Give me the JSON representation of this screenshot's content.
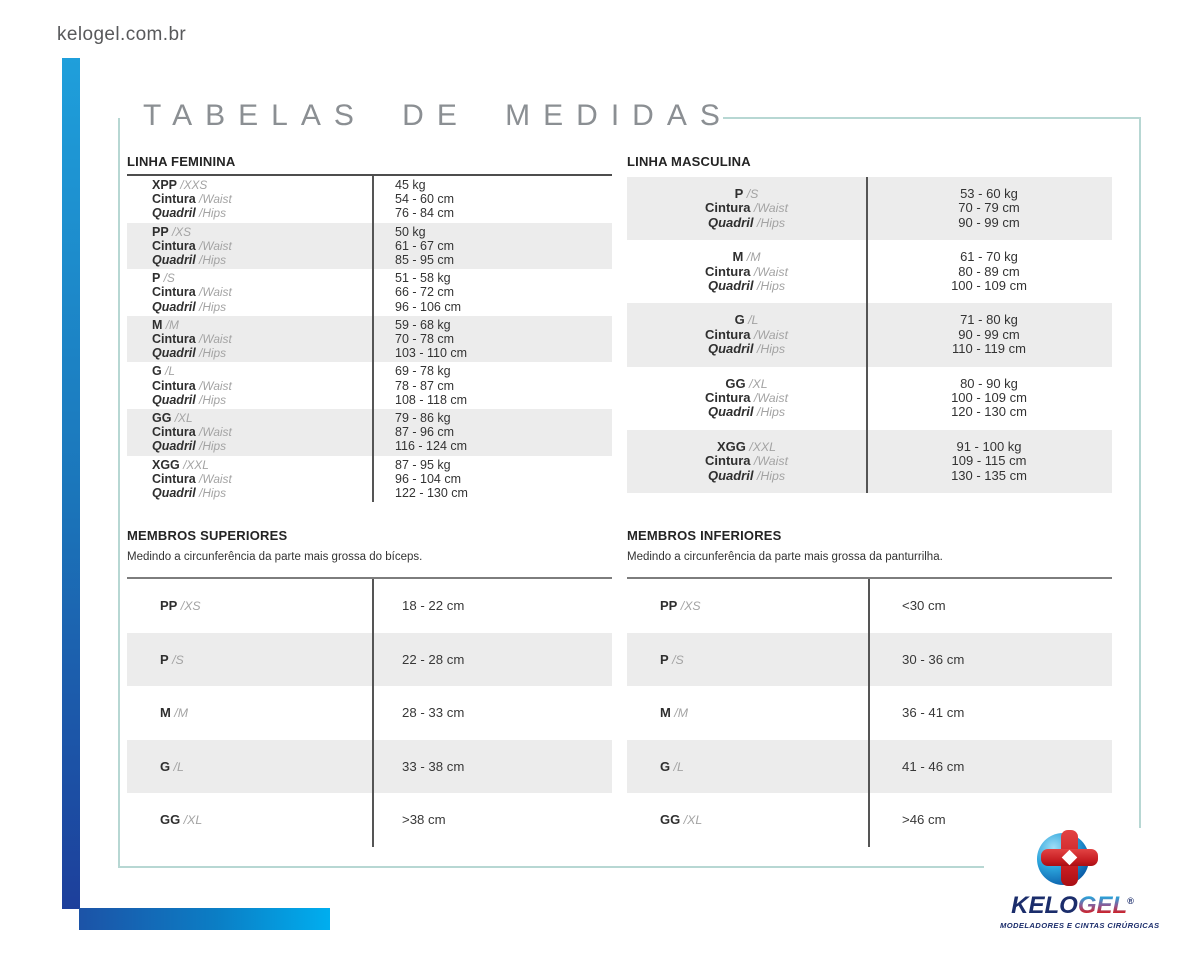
{
  "page": {
    "site_url": "kelogel.com.br",
    "title": "TABELAS DE MEDIDAS"
  },
  "colors": {
    "accent_blue_top": "#1f9fdb",
    "accent_blue_bottom": "#1d3f9b",
    "accent_cyan": "#00aeef",
    "frame_teal": "#b7d7d3",
    "row_shade": "#ececec",
    "text_dark": "#2f2f2f",
    "text_gray": "#a3a3a3",
    "logo_navy": "#1b2d6b",
    "logo_red": "#cc2128",
    "logo_blue": "#2d9fd6"
  },
  "labels": {
    "cintura": "Cintura",
    "waist": "/Waist",
    "quadril": "Quadril",
    "hips": "/Hips"
  },
  "linha_feminina": {
    "heading": "LINHA FEMININA",
    "rows": [
      {
        "size": "XPP",
        "size_intl": "/XXS",
        "weight": "45 kg",
        "waist": "54 - 60 cm",
        "hips": "76 - 84 cm",
        "shaded": false
      },
      {
        "size": "PP",
        "size_intl": "/XS",
        "weight": "50 kg",
        "waist": "61 - 67 cm",
        "hips": "85 - 95 cm",
        "shaded": true
      },
      {
        "size": "P",
        "size_intl": "/S",
        "weight": "51 - 58 kg",
        "waist": "66 - 72 cm",
        "hips": "96 - 106 cm",
        "shaded": false
      },
      {
        "size": "M",
        "size_intl": "/M",
        "weight": "59 - 68 kg",
        "waist": "70 - 78 cm",
        "hips": "103 - 110 cm",
        "shaded": true
      },
      {
        "size": "G",
        "size_intl": "/L",
        "weight": "69 - 78 kg",
        "waist": "78 - 87 cm",
        "hips": "108 - 118 cm",
        "shaded": false
      },
      {
        "size": "GG",
        "size_intl": "/XL",
        "weight": "79 - 86 kg",
        "waist": "87 - 96 cm",
        "hips": "116 - 124 cm",
        "shaded": true
      },
      {
        "size": "XGG",
        "size_intl": "/XXL",
        "weight": "87 - 95 kg",
        "waist": "96 - 104 cm",
        "hips": "122 - 130 cm",
        "shaded": false
      }
    ]
  },
  "linha_masculina": {
    "heading": "LINHA MASCULINA",
    "rows": [
      {
        "size": "P",
        "size_intl": "/S",
        "weight": "53 - 60 kg",
        "waist": "70 - 79 cm",
        "hips": "90 - 99 cm",
        "shaded": true
      },
      {
        "size": "M",
        "size_intl": "/M",
        "weight": "61 - 70 kg",
        "waist": "80 - 89 cm",
        "hips": "100 - 109 cm",
        "shaded": false
      },
      {
        "size": "G",
        "size_intl": "/L",
        "weight": "71 - 80 kg",
        "waist": "90 - 99 cm",
        "hips": "110 - 119 cm",
        "shaded": true
      },
      {
        "size": "GG",
        "size_intl": "/XL",
        "weight": "80 - 90 kg",
        "waist": "100 - 109 cm",
        "hips": "120 - 130 cm",
        "shaded": false
      },
      {
        "size": "XGG",
        "size_intl": "/XXL",
        "weight": "91 - 100 kg",
        "waist": "109 - 115 cm",
        "hips": "130 - 135 cm",
        "shaded": true
      }
    ]
  },
  "membros_superiores": {
    "heading": "MEMBROS SUPERIORES",
    "subtitle": "Medindo a circunferência da parte mais grossa do bíceps.",
    "rows": [
      {
        "size": "PP",
        "size_intl": "/XS",
        "value": "18 - 22 cm",
        "shaded": false
      },
      {
        "size": "P",
        "size_intl": "/S",
        "value": "22 - 28 cm",
        "shaded": true
      },
      {
        "size": "M",
        "size_intl": "/M",
        "value": "28 - 33 cm",
        "shaded": false
      },
      {
        "size": "G",
        "size_intl": "/L",
        "value": "33 - 38 cm",
        "shaded": true
      },
      {
        "size": "GG",
        "size_intl": "/XL",
        "value": ">38 cm",
        "shaded": false
      }
    ]
  },
  "membros_inferiores": {
    "heading": "MEMBROS INFERIORES",
    "subtitle": "Medindo a circunferência da parte mais grossa da panturrilha.",
    "rows": [
      {
        "size": "PP",
        "size_intl": "/XS",
        "value": "<30 cm",
        "shaded": false
      },
      {
        "size": "P",
        "size_intl": "/S",
        "value": "30 - 36 cm",
        "shaded": true
      },
      {
        "size": "M",
        "size_intl": "/M",
        "value": "36 - 41 cm",
        "shaded": false
      },
      {
        "size": "G",
        "size_intl": "/L",
        "value": "41 - 46 cm",
        "shaded": true
      },
      {
        "size": "GG",
        "size_intl": "/XL",
        "value": ">46 cm",
        "shaded": false
      }
    ]
  },
  "logo": {
    "brand_first": "KELO",
    "brand_second": "GEL",
    "registered": "®",
    "tagline": "MODELADORES E CINTAS CIRÚRGICAS"
  }
}
